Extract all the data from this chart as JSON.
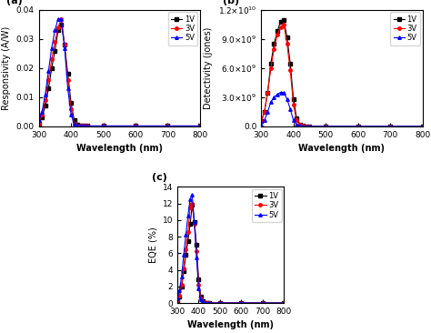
{
  "wavelength": [
    300,
    310,
    320,
    330,
    340,
    350,
    360,
    370,
    380,
    390,
    400,
    410,
    420,
    430,
    440,
    450,
    500,
    600,
    700,
    800
  ],
  "resp_1V": [
    0.001,
    0.003,
    0.007,
    0.013,
    0.02,
    0.026,
    0.033,
    0.035,
    0.028,
    0.018,
    0.008,
    0.002,
    0.0005,
    0.0001,
    0.0001,
    0.0001,
    0.0001,
    0.0001,
    0.0001,
    0.0001
  ],
  "resp_3V": [
    0.001,
    0.004,
    0.009,
    0.016,
    0.023,
    0.029,
    0.034,
    0.037,
    0.028,
    0.016,
    0.006,
    0.001,
    0.0003,
    0.0001,
    0.0001,
    0.0001,
    0.0001,
    0.0001,
    0.0001,
    0.0001
  ],
  "resp_5V": [
    0.002,
    0.005,
    0.011,
    0.019,
    0.027,
    0.033,
    0.037,
    0.037,
    0.027,
    0.013,
    0.004,
    0.0008,
    0.0002,
    0.0001,
    0.0001,
    0.0001,
    0.0001,
    0.0001,
    0.0001,
    0.0001
  ],
  "det_1V": [
    500000000.0,
    1500000000.0,
    3500000000.0,
    6500000000.0,
    8500000000.0,
    9800000000.0,
    10800000000.0,
    11000000000.0,
    9200000000.0,
    6500000000.0,
    2800000000.0,
    800000000.0,
    200000000.0,
    50000000.0,
    10000000.0,
    5000000.0,
    5000000.0,
    5000000.0,
    5000000.0,
    5000000.0
  ],
  "det_3V": [
    500000000.0,
    1500000000.0,
    3500000000.0,
    6000000000.0,
    8000000000.0,
    9500000000.0,
    10200000000.0,
    10500000000.0,
    8500000000.0,
    5800000000.0,
    2200000000.0,
    600000000.0,
    150000000.0,
    40000000.0,
    8000000.0,
    4000000.0,
    4000000.0,
    4000000.0,
    4000000.0,
    4000000.0
  ],
  "det_5V": [
    200000000.0,
    600000000.0,
    1500000000.0,
    2500000000.0,
    3000000000.0,
    3300000000.0,
    3500000000.0,
    3500000000.0,
    2800000000.0,
    1800000000.0,
    600000000.0,
    150000000.0,
    30000000.0,
    6000000.0,
    2000000.0,
    1000000.0,
    1000000.0,
    1000000.0,
    1000000.0,
    1000000.0
  ],
  "eqe_1V": [
    0.3,
    0.8,
    2.0,
    3.8,
    5.8,
    7.5,
    9.5,
    11.8,
    9.8,
    7.0,
    2.8,
    0.8,
    0.2,
    0.05,
    0.01,
    0.01,
    0.01,
    0.01,
    0.01,
    0.01
  ],
  "eqe_3V": [
    0.3,
    0.9,
    2.2,
    4.2,
    6.5,
    8.5,
    11.5,
    12.0,
    9.5,
    6.2,
    2.2,
    0.6,
    0.15,
    0.03,
    0.01,
    0.01,
    0.01,
    0.01,
    0.01,
    0.01
  ],
  "eqe_5V": [
    0.5,
    1.5,
    3.2,
    5.8,
    8.2,
    10.5,
    12.5,
    13.0,
    9.8,
    5.5,
    1.8,
    0.4,
    0.08,
    0.02,
    0.01,
    0.01,
    0.01,
    0.01,
    0.01,
    0.01
  ],
  "colors": [
    "black",
    "red",
    "blue"
  ],
  "markers": [
    "s",
    "o",
    "^"
  ],
  "labels": [
    "1V",
    "3V",
    "5V"
  ],
  "xlim": [
    300,
    800
  ],
  "xticks": [
    300,
    400,
    500,
    600,
    700,
    800
  ],
  "resp_ylim": [
    0.0,
    0.04
  ],
  "resp_yticks": [
    0.0,
    0.01,
    0.02,
    0.03,
    0.04
  ],
  "det_ylim": [
    0.0,
    12000000000.0
  ],
  "det_yticks": [
    0.0,
    3000000000.0,
    6000000000.0,
    9000000000.0,
    12000000000.0
  ],
  "eqe_ylim": [
    0,
    14
  ],
  "eqe_yticks": [
    0,
    2,
    4,
    6,
    8,
    10,
    12,
    14
  ],
  "xlabel": "Wavelength (nm)",
  "resp_ylabel": "Responsivity (A/W)",
  "det_ylabel": "Detectivity (jones)",
  "eqe_ylabel": "EQE (%)",
  "panel_labels": [
    "(a)",
    "(b)",
    "(c)"
  ],
  "markersize": 2.5,
  "linewidth": 0.8,
  "fontsize_axes_label": 7,
  "fontsize_tick": 6.5,
  "fontsize_legend": 6,
  "fontsize_panel": 8
}
